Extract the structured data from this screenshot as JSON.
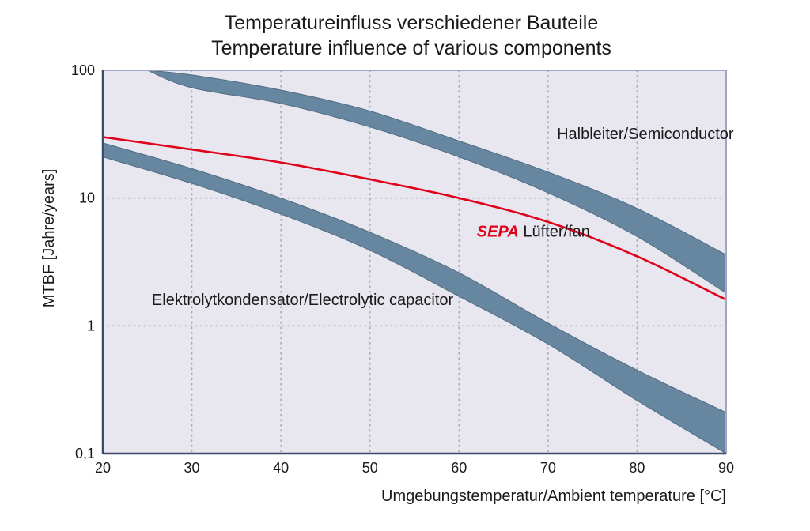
{
  "chart_data": {
    "type": "area",
    "title": "Temperatureinfluss verschiedener Bauteile",
    "subtitle": "Temperature influence of various components",
    "xlabel": "Umgebungstemperatur/Ambient temperature [°C]",
    "ylabel": "MTBF [Jahre/years]",
    "xlim": [
      20,
      90
    ],
    "ylim": [
      0.1,
      100
    ],
    "yscale": "log",
    "grid": true,
    "x_ticks": [
      20,
      30,
      40,
      50,
      60,
      70,
      80,
      90
    ],
    "x_tick_labels": [
      "20",
      "30",
      "40",
      "50",
      "60",
      "70",
      "80",
      "90"
    ],
    "y_ticks": [
      0.1,
      1,
      10,
      100
    ],
    "y_tick_labels": [
      "0,1",
      "1",
      "10",
      "100"
    ],
    "series": [
      {
        "name": "Halbleiter/Semiconductor",
        "kind": "band",
        "color": "#67869f",
        "x": [
          25,
          30,
          40,
          50,
          60,
          70,
          80,
          90
        ],
        "upper": [
          100,
          92,
          70,
          48,
          28,
          16,
          8.3,
          3.6
        ],
        "lower": [
          100,
          73,
          55,
          36,
          21,
          11,
          5.0,
          1.8
        ]
      },
      {
        "name": "Elektrolytkondensator/Electrolytic capacitor",
        "kind": "band",
        "color": "#67869f",
        "x": [
          20,
          30,
          40,
          50,
          60,
          70,
          80,
          90
        ],
        "upper": [
          27,
          17,
          10,
          5.4,
          2.6,
          1.05,
          0.45,
          0.21
        ],
        "lower": [
          21,
          13,
          7.5,
          3.9,
          1.7,
          0.72,
          0.26,
          0.1
        ]
      },
      {
        "name": "SEPA Lüfter/fan",
        "kind": "line",
        "color": "#e0001a",
        "x": [
          20,
          30,
          40,
          50,
          60,
          70,
          80,
          90
        ],
        "values": [
          30,
          24,
          19,
          14,
          10,
          6.5,
          3.5,
          1.6
        ]
      }
    ],
    "annotations": [
      {
        "id": "semi",
        "text": "Halbleiter/Semiconductor",
        "x": 71,
        "y": 29
      },
      {
        "id": "fan",
        "brand": "SEPA",
        "text": " Lüfter/fan",
        "x": 62,
        "y": 5
      },
      {
        "id": "cap",
        "text": "Elektrolytkondensator/Electrolytic capacitor",
        "x": 25.5,
        "y": 1.45
      }
    ],
    "colors": {
      "plot_background": "#e8e6ee",
      "frame": "#9ea6c6",
      "grid": "#a6abc4",
      "band": "#67869f",
      "fan_line": "#e0001a"
    }
  }
}
